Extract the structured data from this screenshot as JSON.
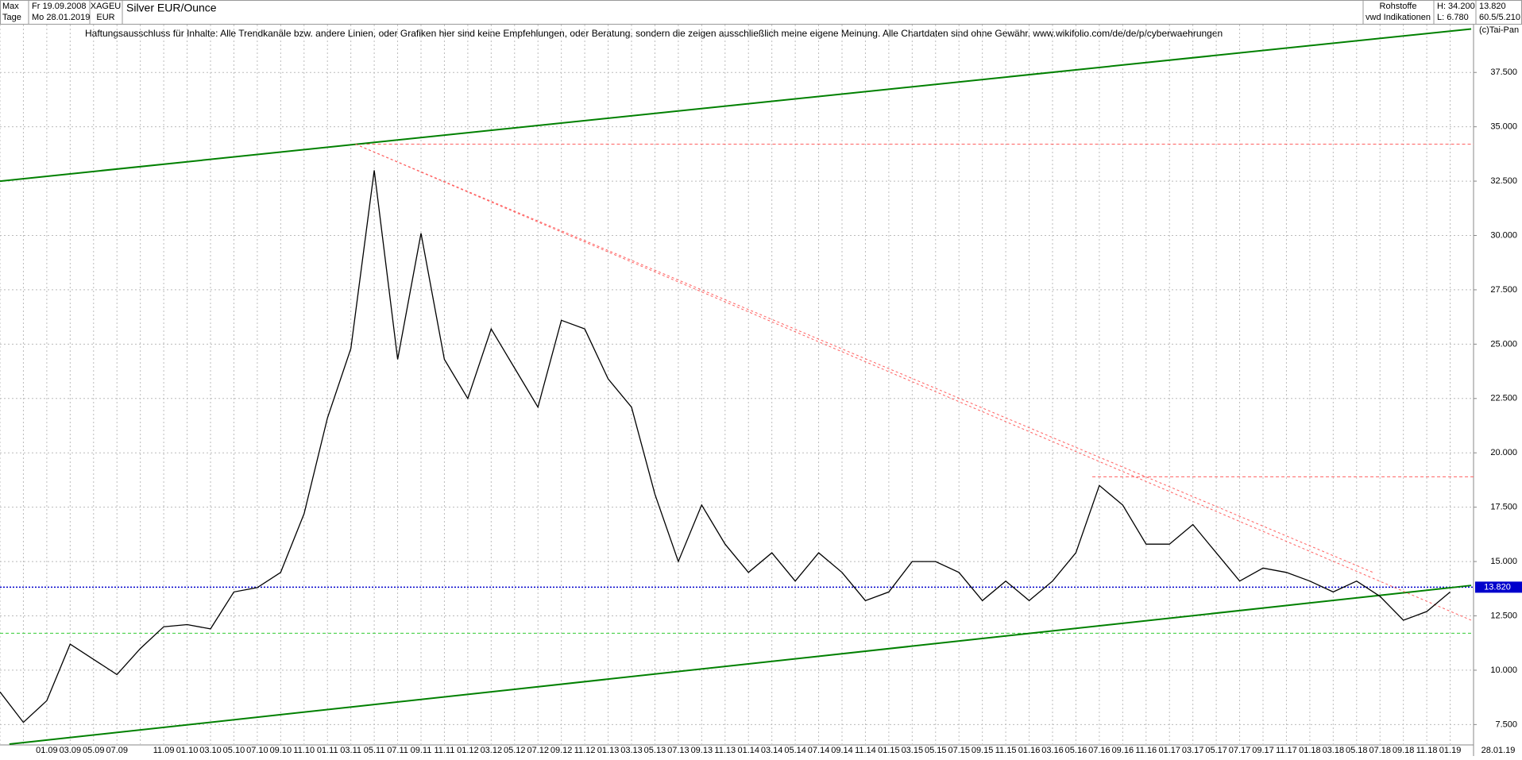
{
  "header": {
    "range": "Max",
    "interval": "Tage",
    "start_date": "Fr 19.09.2008",
    "end_date": "Mo 28.01.2019",
    "symbol": "XAGEU",
    "currency": "EUR",
    "group": "Rohstoffe",
    "source": "vwd Indikationen",
    "high": "H: 34.200",
    "low": "L: 6.780",
    "last": "13.820",
    "extra": "60.5/5.210",
    "copyright": "(c)Tai-Pan",
    "last_date": "28.01.19"
  },
  "chart_data": {
    "type": "line",
    "title": "Silver EUR/Ounce",
    "annotation": "Haftungsausschluss für Inhalte: Alle Trendkanäle bzw. andere Linien, oder Grafiken hier sind keine Empfehlungen, oder Beratung, sondern die zeigen ausschließlich meine eigene Meinung. Alle Chartdaten sind ohne Gewähr.  www.wikifolio.com/de/de/p/cyberwaehrungen",
    "categories": [
      null,
      null,
      "01.09",
      "03.09",
      "05.09",
      "07.09",
      null,
      "11.09",
      "01.10",
      "03.10",
      "05.10",
      "07.10",
      "09.10",
      "11.10",
      "01.11",
      "03.11",
      "05.11",
      "07.11",
      "09.11",
      "11.11",
      "01.12",
      "03.12",
      "05.12",
      "07.12",
      "09.12",
      "11.12",
      "01.13",
      "03.13",
      "05.13",
      "07.13",
      "09.13",
      "11.13",
      "01.14",
      "03.14",
      "05.14",
      "07.14",
      "09.14",
      "11.14",
      "01.15",
      "03.15",
      "05.15",
      "07.15",
      "09.15",
      "11.15",
      "01.16",
      "03.16",
      "05.16",
      "07.16",
      "09.16",
      "11.16",
      "01.17",
      "03.17",
      "05.17",
      "07.17",
      "09.17",
      "11.17",
      "01.18",
      "03.18",
      "05.18",
      "07.18",
      "09.18",
      "11.18",
      "01.19"
    ],
    "values": [
      9.0,
      7.6,
      8.6,
      11.2,
      10.5,
      9.8,
      11.0,
      12.0,
      12.1,
      11.9,
      13.6,
      13.8,
      14.5,
      17.2,
      21.6,
      24.8,
      33.0,
      24.3,
      30.1,
      24.3,
      22.5,
      25.7,
      23.9,
      22.1,
      26.1,
      25.7,
      23.4,
      22.1,
      18.1,
      15.0,
      17.6,
      15.8,
      14.5,
      15.4,
      14.1,
      15.4,
      14.5,
      13.2,
      13.6,
      15.0,
      15.0,
      14.5,
      13.2,
      14.1,
      13.2,
      14.1,
      15.4,
      18.5,
      17.6,
      15.8,
      15.8,
      16.7,
      15.4,
      14.1,
      14.7,
      14.5,
      14.1,
      13.6,
      14.1,
      13.4,
      12.3,
      12.7,
      13.6
    ],
    "color": "#000000",
    "ylim": [
      6.6,
      39.7
    ],
    "yticks": [
      {
        "value": 7.5,
        "label": "7.500"
      },
      {
        "value": 10,
        "label": "10.000"
      },
      {
        "value": 12.5,
        "label": "12.500"
      },
      {
        "value": 15,
        "label": "15.000"
      },
      {
        "value": 17.5,
        "label": "17.500"
      },
      {
        "value": 20,
        "label": "20.000"
      },
      {
        "value": 22.5,
        "label": "22.500"
      },
      {
        "value": 25,
        "label": "25.000"
      },
      {
        "value": 27.5,
        "label": "27.500"
      },
      {
        "value": 30,
        "label": "30.000"
      },
      {
        "value": 32.5,
        "label": "32.500"
      },
      {
        "value": 35,
        "label": "35.000"
      },
      {
        "value": 37.5,
        "label": "37.500"
      }
    ],
    "grid": true,
    "hlines": [
      {
        "value": 34.2,
        "color": "#ff6060",
        "from": 15.2
      },
      {
        "value": 18.9,
        "color": "#ff6060",
        "from": 46.7
      },
      {
        "value": 13.82,
        "label": "13.820",
        "color": "#0000cc",
        "from": 0
      },
      {
        "value": 11.7,
        "color": "#33cc33",
        "from": 0
      }
    ],
    "trendlines": [
      {
        "color": "#008000",
        "x": [
          0,
          62.9
        ],
        "values": [
          32.5,
          39.5
        ]
      },
      {
        "color": "#008000",
        "x": [
          0.4,
          62.9
        ],
        "values": [
          6.6,
          13.9
        ]
      },
      {
        "color": "#ff6060",
        "x": [
          15.2,
          62.9
        ],
        "values": [
          34.2,
          12.3
        ]
      },
      {
        "color": "#ff6060",
        "x": [
          15.2,
          58.7
        ],
        "values": [
          34.2,
          14.5
        ]
      }
    ]
  }
}
